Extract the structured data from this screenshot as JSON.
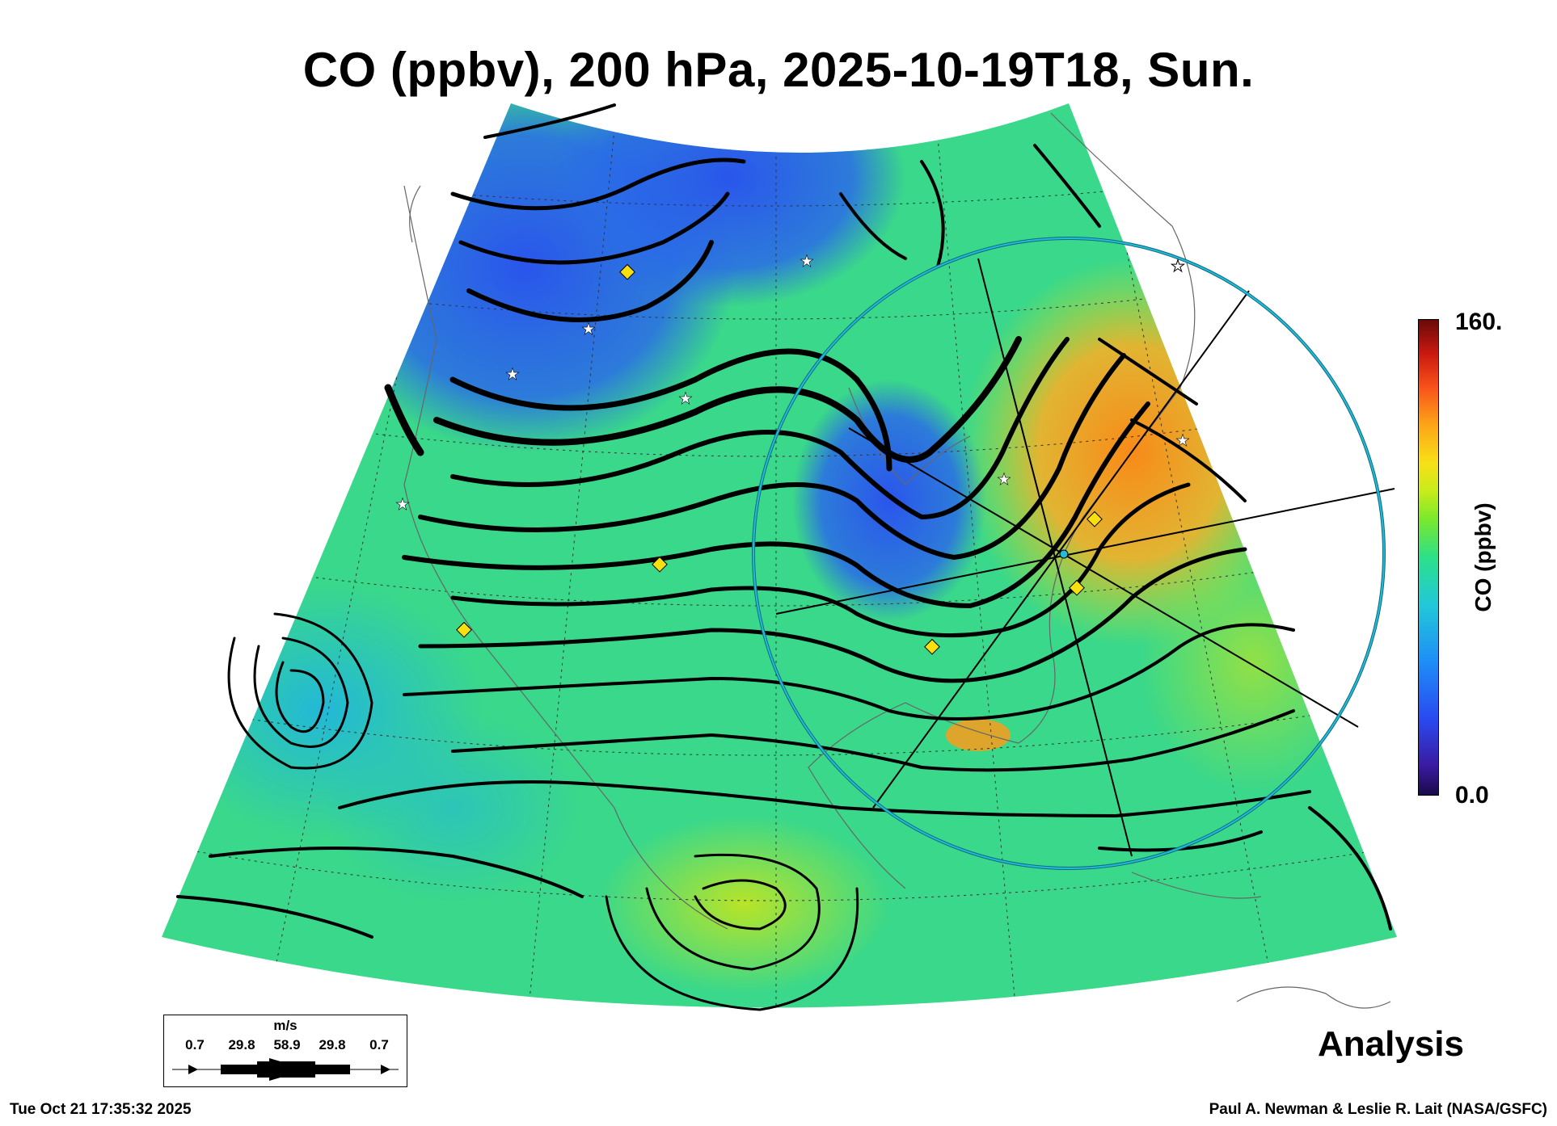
{
  "title": "CO (ppbv), 200 hPa, 2025-10-19T18, Sun.",
  "colorbar": {
    "label": "CO (ppbv)",
    "max_label": "160.",
    "min_label": "0.0",
    "min": 0,
    "max": 160,
    "colors": [
      "#1a0a4a",
      "#2a4af0",
      "#1e8ef8",
      "#22c8d8",
      "#2ce08a",
      "#7ae82c",
      "#c8ec1a",
      "#f8e018",
      "#fca418",
      "#f8501a",
      "#c81810",
      "#6a0a08"
    ]
  },
  "panel_label": "Analysis",
  "wind_legend": {
    "unit": "m/s",
    "values": [
      "0.7",
      "29.8",
      "58.9",
      "29.8",
      "0.7"
    ]
  },
  "footer": {
    "timestamp": "Tue Oct 21 17:35:32 2025",
    "credit": "Paul A. Newman & Leslie R. Lait (NASA/GSFC)"
  },
  "map": {
    "field_colors": {
      "background": "#3ad88a",
      "low": "#2a6ae8",
      "mid": "#2ac6c8",
      "high": "#f4a020",
      "warm": "#c8e020"
    },
    "streamline_color": "#000000",
    "marker_colors": {
      "yellow": "#f8e010",
      "white": "#ffffff",
      "cyan_circle": "#22bcd8"
    }
  }
}
